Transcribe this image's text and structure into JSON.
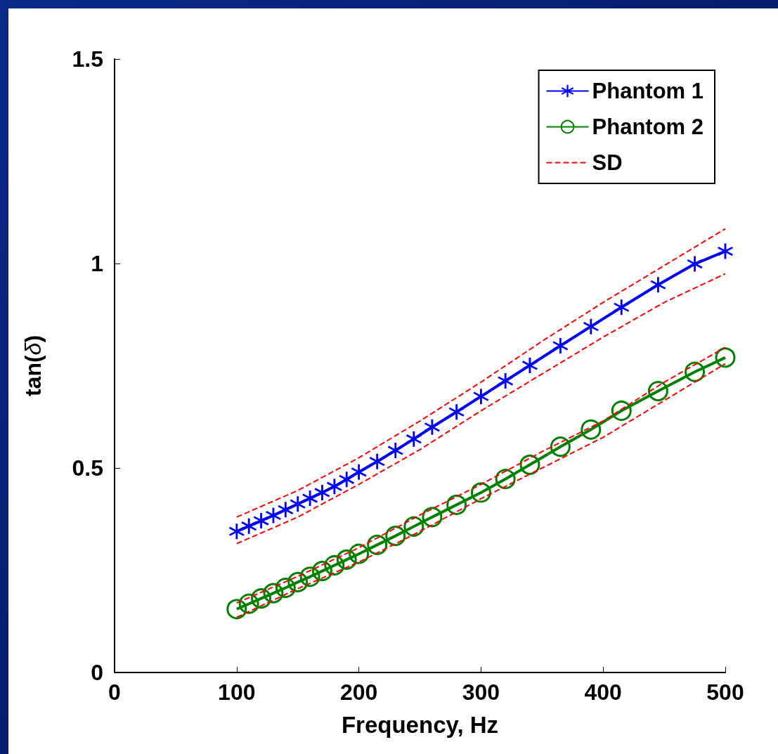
{
  "chart_data": {
    "type": "line",
    "xlabel": "Frequency, Hz",
    "ylabel": "tan(δ)",
    "xlim": [
      0,
      500
    ],
    "ylim": [
      0,
      1.5
    ],
    "xticks": [
      0,
      100,
      200,
      300,
      400,
      500
    ],
    "yticks": [
      0,
      0.5,
      1,
      1.5
    ],
    "grid": false,
    "legend": "top right",
    "series": [
      {
        "name": "Phantom 1",
        "color": "#0000ff",
        "marker": "star",
        "line_style": "solid",
        "x": [
          100,
          110,
          120,
          130,
          140,
          150,
          160,
          170,
          180,
          190,
          200,
          215,
          230,
          245,
          260,
          280,
          300,
          320,
          340,
          365,
          390,
          415,
          445,
          475,
          500
        ],
        "values": [
          0.345,
          0.358,
          0.371,
          0.384,
          0.398,
          0.412,
          0.426,
          0.44,
          0.455,
          0.472,
          0.49,
          0.516,
          0.543,
          0.571,
          0.6,
          0.637,
          0.675,
          0.713,
          0.751,
          0.799,
          0.846,
          0.893,
          0.948,
          0.999,
          1.03
        ]
      },
      {
        "name": "Phantom 2",
        "color": "#008000",
        "marker": "circle",
        "line_style": "solid",
        "x": [
          100,
          110,
          120,
          130,
          140,
          150,
          160,
          170,
          180,
          190,
          200,
          215,
          230,
          245,
          260,
          280,
          300,
          320,
          340,
          365,
          390,
          415,
          445,
          475,
          500
        ],
        "values": [
          0.155,
          0.168,
          0.181,
          0.194,
          0.207,
          0.221,
          0.234,
          0.248,
          0.262,
          0.276,
          0.29,
          0.312,
          0.334,
          0.357,
          0.38,
          0.41,
          0.44,
          0.473,
          0.508,
          0.552,
          0.594,
          0.64,
          0.688,
          0.735,
          0.77
        ]
      },
      {
        "name": "SD",
        "color": "#ff0000",
        "marker": "none",
        "line_style": "dashed",
        "x": [
          100,
          150,
          200,
          250,
          300,
          350,
          400,
          450,
          500
        ],
        "values": [
          0.38,
          0.445,
          0.525,
          0.615,
          0.71,
          0.81,
          0.905,
          0.995,
          1.085
        ]
      },
      {
        "color": "#ff0000",
        "marker": "none",
        "line_style": "dashed",
        "x": [
          100,
          150,
          200,
          250,
          300,
          350,
          400,
          450,
          500
        ],
        "values": [
          0.315,
          0.38,
          0.46,
          0.545,
          0.64,
          0.73,
          0.82,
          0.905,
          0.975
        ]
      },
      {
        "color": "#ff0000",
        "marker": "none",
        "line_style": "dashed",
        "x": [
          100,
          150,
          200,
          250,
          300,
          350,
          400,
          450,
          500
        ],
        "values": [
          0.17,
          0.235,
          0.305,
          0.385,
          0.46,
          0.54,
          0.615,
          0.71,
          0.795
        ]
      },
      {
        "color": "#ff0000",
        "marker": "none",
        "line_style": "dashed",
        "x": [
          100,
          150,
          200,
          250,
          300,
          350,
          400,
          450,
          500
        ],
        "values": [
          0.135,
          0.205,
          0.27,
          0.345,
          0.425,
          0.5,
          0.575,
          0.665,
          0.755
        ]
      }
    ]
  }
}
